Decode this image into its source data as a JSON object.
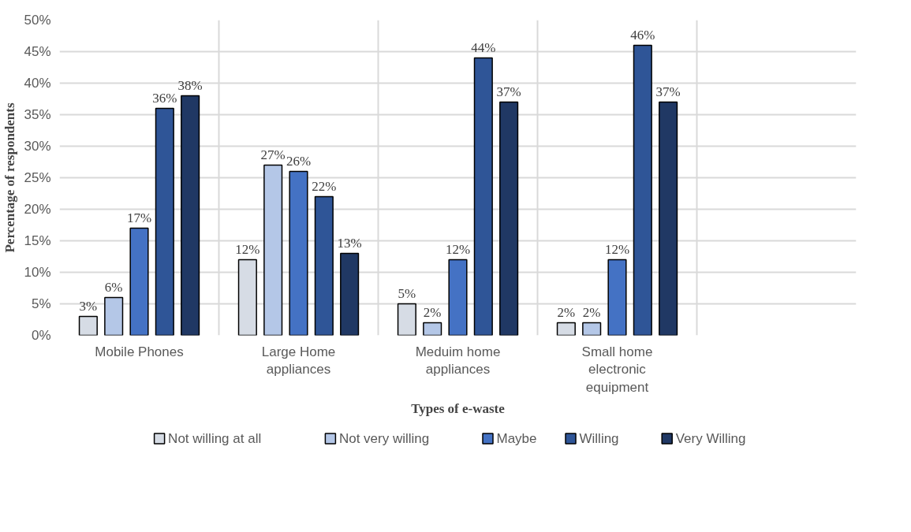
{
  "chart_data": {
    "type": "bar",
    "xlabel": "Types of e-waste",
    "ylabel": "Percentage of respondents",
    "categories": [
      "Mobile Phones",
      "Large Home appliances",
      "Meduim home appliances",
      "Small home electronic equipment",
      null
    ],
    "series": [
      {
        "name": "Not willing at all",
        "color": "#d6dce5",
        "values": [
          3,
          12,
          5,
          2,
          null
        ],
        "value_labels": [
          "3%",
          "12%",
          "5%",
          "2%",
          null
        ]
      },
      {
        "name": "Not very willing",
        "color": "#b4c7e7",
        "values": [
          6,
          27,
          2,
          2,
          null
        ],
        "value_labels": [
          "6%",
          "27%",
          "2%",
          "2%",
          null
        ]
      },
      {
        "name": "Maybe",
        "color": "#4472c4",
        "values": [
          17,
          26,
          12,
          12,
          null
        ],
        "value_labels": [
          "17%",
          "26%",
          "12%",
          "12%",
          null
        ]
      },
      {
        "name": "Willing",
        "color": "#2f5597",
        "values": [
          36,
          22,
          44,
          46,
          null
        ],
        "value_labels": [
          "36%",
          "22%",
          "44%",
          "46%",
          null
        ]
      },
      {
        "name": "Very Willing",
        "color": "#203864",
        "values": [
          38,
          13,
          37,
          37,
          null
        ],
        "value_labels": [
          "38%",
          "13%",
          "37%",
          "37%",
          null
        ]
      }
    ],
    "ylim": [
      0,
      50
    ],
    "yticks": [
      {
        "value": 0,
        "label": "0%"
      },
      {
        "value": 5,
        "label": "5%"
      },
      {
        "value": 10,
        "label": "10%"
      },
      {
        "value": 15,
        "label": "15%"
      },
      {
        "value": 20,
        "label": "20%"
      },
      {
        "value": 25,
        "label": "25%"
      },
      {
        "value": 30,
        "label": "30%"
      },
      {
        "value": 35,
        "label": "35%"
      },
      {
        "value": 40,
        "label": "40%"
      },
      {
        "value": 45,
        "label": "45%"
      },
      {
        "value": 50,
        "label": "50%"
      }
    ],
    "grid": true,
    "legend": "bottom"
  }
}
